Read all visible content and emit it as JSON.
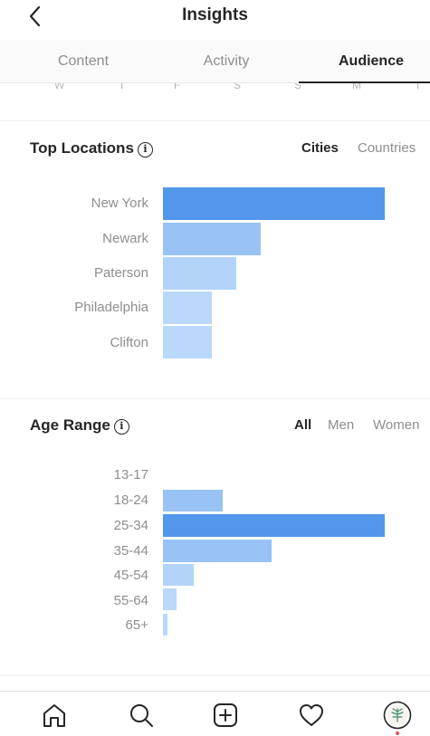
{
  "header": {
    "title": "Insights",
    "back_icon": "chevron-left-icon"
  },
  "tabs": [
    {
      "label": "Content"
    },
    {
      "label": "Activity"
    },
    {
      "label": "Audience",
      "selected": true
    }
  ],
  "weekdays": [
    "W",
    "T",
    "F",
    "S",
    "S",
    "M",
    "T"
  ],
  "top_locations": {
    "title": "Top Locations",
    "filters": [
      "Cities",
      "Countries"
    ],
    "active_filter": "Cities",
    "bar_color_max": "#5397ea",
    "bar_colors": [
      "#5397ea",
      "#98c3f4",
      "#b3d4f8",
      "#b9d8fa",
      "#b9d8fa"
    ],
    "rows": [
      {
        "label": "New York",
        "value": 100
      },
      {
        "label": "Newark",
        "value": 44
      },
      {
        "label": "Paterson",
        "value": 33
      },
      {
        "label": "Philadelphia",
        "value": 22
      },
      {
        "label": "Clifton",
        "value": 22
      }
    ]
  },
  "age_range": {
    "title": "Age Range",
    "filters": [
      "All",
      "Men",
      "Women"
    ],
    "active_filter": "All",
    "bar_colors": [
      "#b9d8fa",
      "#98c3f4",
      "#5397ea",
      "#98c3f4",
      "#b3d4f8",
      "#b9d8fa",
      "#b9d8fa"
    ],
    "rows": [
      {
        "label": "13-17",
        "value": 0
      },
      {
        "label": "18-24",
        "value": 27
      },
      {
        "label": "25-34",
        "value": 100
      },
      {
        "label": "35-44",
        "value": 49
      },
      {
        "label": "45-54",
        "value": 14
      },
      {
        "label": "55-64",
        "value": 6
      },
      {
        "label": "65+",
        "value": 2
      }
    ]
  },
  "bottom_nav": {
    "items": [
      "home-icon",
      "search-icon",
      "add-post-icon",
      "activity-heart-icon",
      "profile-avatar"
    ],
    "notification_color": "#ed4956"
  }
}
